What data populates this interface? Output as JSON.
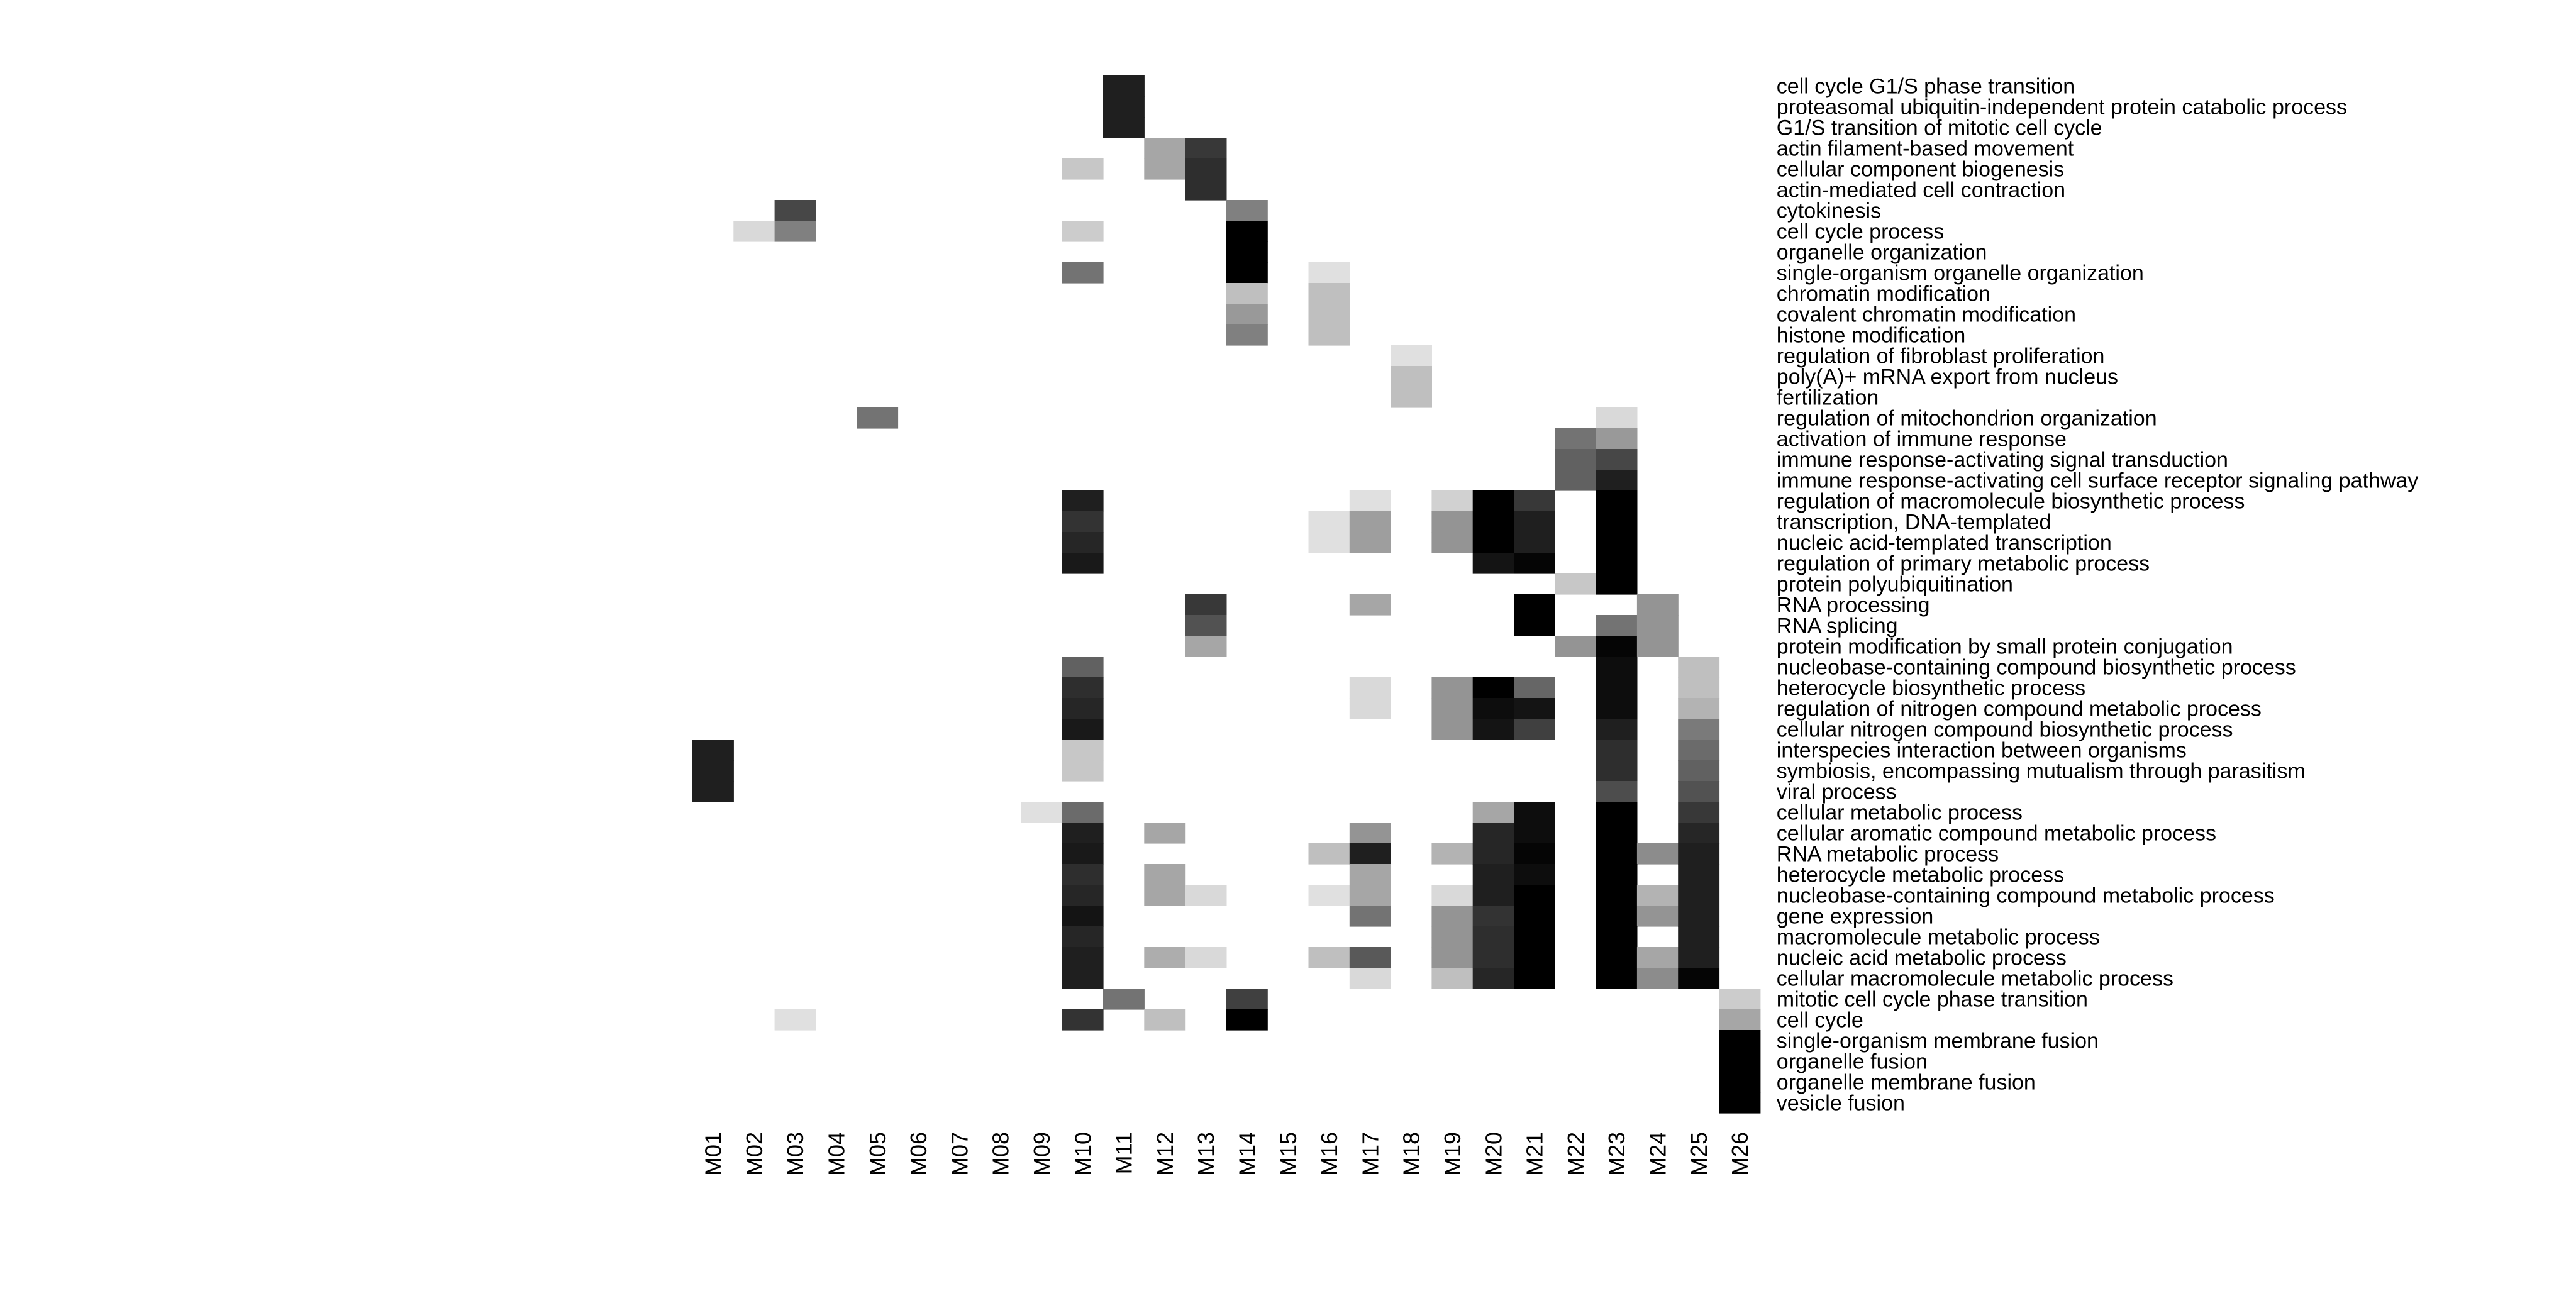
{
  "chart_data": {
    "type": "heatmap",
    "title": "",
    "xlabel": "",
    "ylabel": "",
    "value_range": [
      0,
      1
    ],
    "colormap": {
      "low": "#ffffff",
      "high": "#000000"
    },
    "columns": [
      "M01",
      "M02",
      "M03",
      "M04",
      "M05",
      "M06",
      "M07",
      "M08",
      "M09",
      "M10",
      "M11",
      "M12",
      "M13",
      "M14",
      "M15",
      "M16",
      "M17",
      "M18",
      "M19",
      "M20",
      "M21",
      "M22",
      "M23",
      "M24",
      "M25",
      "M26"
    ],
    "rows": [
      "cell cycle G1/S phase transition",
      "proteasomal ubiquitin-independent protein catabolic process",
      "G1/S transition of mitotic cell cycle",
      "actin filament-based movement",
      "cellular component biogenesis",
      "actin-mediated cell contraction",
      "cytokinesis",
      "cell cycle process",
      "organelle organization",
      "single-organism organelle organization",
      "chromatin modification",
      "covalent chromatin modification",
      "histone modification",
      "regulation of fibroblast proliferation",
      "poly(A)+ mRNA export from nucleus",
      "fertilization",
      "regulation of mitochondrion organization",
      "activation of immune response",
      "immune response-activating signal transduction",
      "immune response-activating cell surface receptor signaling pathway",
      "regulation of macromolecule biosynthetic process",
      "transcription, DNA-templated",
      "nucleic acid-templated transcription",
      "regulation of primary metabolic process",
      "protein polyubiquitination",
      "RNA processing",
      "RNA splicing",
      "protein modification by small protein conjugation",
      "nucleobase-containing compound biosynthetic process",
      "heterocycle biosynthetic process",
      "regulation of nitrogen compound metabolic process",
      "cellular nitrogen compound biosynthetic process",
      "interspecies interaction between organisms",
      "symbiosis, encompassing mutualism through parasitism",
      "viral process",
      "cellular metabolic process",
      "cellular aromatic compound metabolic process",
      "RNA metabolic process",
      "heterocycle metabolic process",
      "nucleobase-containing compound metabolic process",
      "gene expression",
      "macromolecule metabolic process",
      "nucleic acid metabolic process",
      "cellular macromolecule metabolic process",
      "mitotic cell cycle phase transition",
      "cell cycle",
      "single-organism membrane fusion",
      "organelle fusion",
      "organelle membrane fusion",
      "vesicle fusion"
    ],
    "cells": [
      [
        "M11",
        0,
        0.88
      ],
      [
        "M11",
        1,
        0.88
      ],
      [
        "M11",
        2,
        0.88
      ],
      [
        "M12",
        3,
        0.35
      ],
      [
        "M12",
        4,
        0.35
      ],
      [
        "M13",
        3,
        0.78
      ],
      [
        "M13",
        4,
        0.82
      ],
      [
        "M13",
        5,
        0.82
      ],
      [
        "M10",
        4,
        0.22
      ],
      [
        "M03",
        6,
        0.72
      ],
      [
        "M14",
        6,
        0.5
      ],
      [
        "M02",
        7,
        0.15
      ],
      [
        "M03",
        7,
        0.5
      ],
      [
        "M10",
        7,
        0.2
      ],
      [
        "M14",
        7,
        1.0
      ],
      [
        "M14",
        8,
        1.0
      ],
      [
        "M10",
        9,
        0.55
      ],
      [
        "M14",
        9,
        1.0
      ],
      [
        "M16",
        9,
        0.12
      ],
      [
        "M14",
        10,
        0.25
      ],
      [
        "M16",
        10,
        0.25
      ],
      [
        "M14",
        11,
        0.4
      ],
      [
        "M16",
        11,
        0.25
      ],
      [
        "M14",
        12,
        0.5
      ],
      [
        "M16",
        12,
        0.25
      ],
      [
        "M18",
        13,
        0.12
      ],
      [
        "M18",
        14,
        0.25
      ],
      [
        "M18",
        15,
        0.25
      ],
      [
        "M05",
        16,
        0.55
      ],
      [
        "M23",
        16,
        0.15
      ],
      [
        "M22",
        17,
        0.55
      ],
      [
        "M23",
        17,
        0.4
      ],
      [
        "M22",
        18,
        0.62
      ],
      [
        "M23",
        18,
        0.72
      ],
      [
        "M22",
        19,
        0.62
      ],
      [
        "M23",
        19,
        0.88
      ],
      [
        "M10",
        20,
        0.88
      ],
      [
        "M17",
        20,
        0.12
      ],
      [
        "M19",
        20,
        0.18
      ],
      [
        "M20",
        20,
        1.0
      ],
      [
        "M21",
        20,
        0.78
      ],
      [
        "M23",
        20,
        1.0
      ],
      [
        "M10",
        21,
        0.8
      ],
      [
        "M16",
        21,
        0.12
      ],
      [
        "M17",
        21,
        0.38
      ],
      [
        "M19",
        21,
        0.42
      ],
      [
        "M20",
        21,
        1.0
      ],
      [
        "M21",
        21,
        0.88
      ],
      [
        "M23",
        21,
        1.0
      ],
      [
        "M10",
        22,
        0.85
      ],
      [
        "M16",
        22,
        0.12
      ],
      [
        "M17",
        22,
        0.38
      ],
      [
        "M19",
        22,
        0.42
      ],
      [
        "M20",
        22,
        1.0
      ],
      [
        "M21",
        22,
        0.88
      ],
      [
        "M23",
        22,
        1.0
      ],
      [
        "M10",
        23,
        0.9
      ],
      [
        "M20",
        23,
        0.92
      ],
      [
        "M21",
        23,
        0.98
      ],
      [
        "M23",
        23,
        1.0
      ],
      [
        "M22",
        24,
        0.22
      ],
      [
        "M23",
        24,
        1.0
      ],
      [
        "M13",
        25,
        0.78
      ],
      [
        "M17",
        25,
        0.35
      ],
      [
        "M21",
        25,
        1.0
      ],
      [
        "M24",
        25,
        0.42
      ],
      [
        "M13",
        26,
        0.68
      ],
      [
        "M21",
        26,
        1.0
      ],
      [
        "M23",
        26,
        0.55
      ],
      [
        "M24",
        26,
        0.42
      ],
      [
        "M13",
        27,
        0.35
      ],
      [
        "M22",
        27,
        0.42
      ],
      [
        "M23",
        27,
        0.98
      ],
      [
        "M24",
        27,
        0.42
      ],
      [
        "M10",
        28,
        0.62
      ],
      [
        "M23",
        28,
        0.95
      ],
      [
        "M25",
        28,
        0.25
      ],
      [
        "M10",
        29,
        0.82
      ],
      [
        "M17",
        29,
        0.15
      ],
      [
        "M19",
        29,
        0.42
      ],
      [
        "M20",
        29,
        1.0
      ],
      [
        "M21",
        29,
        0.6
      ],
      [
        "M23",
        29,
        0.95
      ],
      [
        "M25",
        29,
        0.25
      ],
      [
        "M10",
        30,
        0.85
      ],
      [
        "M17",
        30,
        0.15
      ],
      [
        "M19",
        30,
        0.42
      ],
      [
        "M20",
        30,
        0.95
      ],
      [
        "M21",
        30,
        0.92
      ],
      [
        "M23",
        30,
        0.95
      ],
      [
        "M25",
        30,
        0.3
      ],
      [
        "M10",
        31,
        0.9
      ],
      [
        "M19",
        31,
        0.42
      ],
      [
        "M20",
        31,
        0.92
      ],
      [
        "M21",
        31,
        0.75
      ],
      [
        "M23",
        31,
        0.88
      ],
      [
        "M25",
        31,
        0.52
      ],
      [
        "M01",
        32,
        0.88
      ],
      [
        "M10",
        32,
        0.22
      ],
      [
        "M23",
        32,
        0.82
      ],
      [
        "M25",
        32,
        0.58
      ],
      [
        "M01",
        33,
        0.88
      ],
      [
        "M10",
        33,
        0.22
      ],
      [
        "M23",
        33,
        0.82
      ],
      [
        "M25",
        33,
        0.62
      ],
      [
        "M01",
        34,
        0.88
      ],
      [
        "M23",
        34,
        0.7
      ],
      [
        "M25",
        34,
        0.68
      ],
      [
        "M09",
        35,
        0.12
      ],
      [
        "M10",
        35,
        0.58
      ],
      [
        "M20",
        35,
        0.35
      ],
      [
        "M21",
        35,
        0.95
      ],
      [
        "M23",
        35,
        1.0
      ],
      [
        "M25",
        35,
        0.78
      ],
      [
        "M10",
        36,
        0.88
      ],
      [
        "M12",
        36,
        0.35
      ],
      [
        "M17",
        36,
        0.42
      ],
      [
        "M20",
        36,
        0.85
      ],
      [
        "M21",
        36,
        0.95
      ],
      [
        "M23",
        36,
        1.0
      ],
      [
        "M25",
        36,
        0.85
      ],
      [
        "M10",
        37,
        0.9
      ],
      [
        "M16",
        37,
        0.25
      ],
      [
        "M17",
        37,
        0.88
      ],
      [
        "M19",
        37,
        0.3
      ],
      [
        "M20",
        37,
        0.85
      ],
      [
        "M21",
        37,
        0.98
      ],
      [
        "M23",
        37,
        1.0
      ],
      [
        "M24",
        37,
        0.45
      ],
      [
        "M25",
        37,
        0.88
      ],
      [
        "M10",
        38,
        0.82
      ],
      [
        "M12",
        38,
        0.35
      ],
      [
        "M17",
        38,
        0.35
      ],
      [
        "M20",
        38,
        0.88
      ],
      [
        "M21",
        38,
        0.95
      ],
      [
        "M23",
        38,
        1.0
      ],
      [
        "M25",
        38,
        0.88
      ],
      [
        "M10",
        39,
        0.85
      ],
      [
        "M12",
        39,
        0.35
      ],
      [
        "M13",
        39,
        0.15
      ],
      [
        "M16",
        39,
        0.12
      ],
      [
        "M17",
        39,
        0.35
      ],
      [
        "M19",
        39,
        0.15
      ],
      [
        "M20",
        39,
        0.88
      ],
      [
        "M21",
        39,
        1.0
      ],
      [
        "M23",
        39,
        1.0
      ],
      [
        "M24",
        39,
        0.3
      ],
      [
        "M25",
        39,
        0.88
      ],
      [
        "M10",
        40,
        0.92
      ],
      [
        "M17",
        40,
        0.55
      ],
      [
        "M19",
        40,
        0.42
      ],
      [
        "M20",
        40,
        0.8
      ],
      [
        "M21",
        40,
        1.0
      ],
      [
        "M23",
        40,
        1.0
      ],
      [
        "M24",
        40,
        0.42
      ],
      [
        "M25",
        40,
        0.88
      ],
      [
        "M10",
        41,
        0.85
      ],
      [
        "M19",
        41,
        0.42
      ],
      [
        "M20",
        41,
        0.82
      ],
      [
        "M21",
        41,
        1.0
      ],
      [
        "M23",
        41,
        1.0
      ],
      [
        "M25",
        41,
        0.88
      ],
      [
        "M10",
        42,
        0.88
      ],
      [
        "M12",
        42,
        0.32
      ],
      [
        "M13",
        42,
        0.15
      ],
      [
        "M16",
        42,
        0.25
      ],
      [
        "M17",
        42,
        0.65
      ],
      [
        "M19",
        42,
        0.42
      ],
      [
        "M20",
        42,
        0.82
      ],
      [
        "M21",
        42,
        1.0
      ],
      [
        "M23",
        42,
        1.0
      ],
      [
        "M24",
        42,
        0.35
      ],
      [
        "M25",
        42,
        0.88
      ],
      [
        "M10",
        43,
        0.88
      ],
      [
        "M17",
        43,
        0.15
      ],
      [
        "M19",
        43,
        0.25
      ],
      [
        "M20",
        43,
        0.85
      ],
      [
        "M21",
        43,
        1.0
      ],
      [
        "M23",
        43,
        1.0
      ],
      [
        "M24",
        43,
        0.45
      ],
      [
        "M25",
        43,
        0.98
      ],
      [
        "M11",
        44,
        0.55
      ],
      [
        "M14",
        44,
        0.75
      ],
      [
        "M26",
        44,
        0.2
      ],
      [
        "M03",
        45,
        0.12
      ],
      [
        "M10",
        45,
        0.8
      ],
      [
        "M12",
        45,
        0.25
      ],
      [
        "M14",
        45,
        1.0
      ],
      [
        "M26",
        45,
        0.35
      ],
      [
        "M26",
        46,
        1.0
      ],
      [
        "M26",
        47,
        1.0
      ],
      [
        "M26",
        48,
        1.0
      ],
      [
        "M26",
        49,
        1.0
      ]
    ]
  }
}
